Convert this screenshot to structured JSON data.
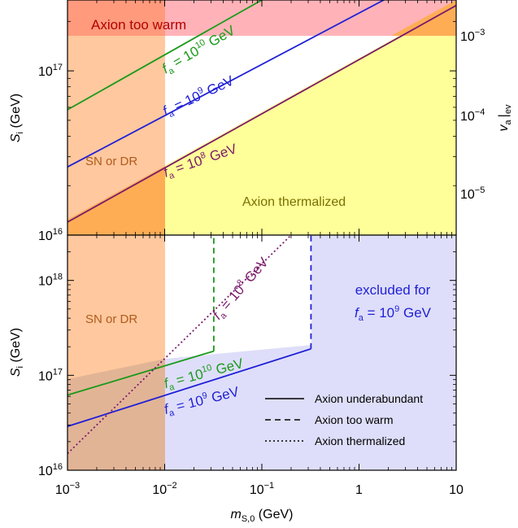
{
  "chart_data": [
    {
      "panel": "top",
      "type": "line",
      "x_scale": "log",
      "y_scale": "log",
      "xlim": [
        0.001,
        10
      ],
      "ylim": [
        10000000000000000,
        270000000000000000
      ],
      "ylabel": "S_i (GeV)",
      "y_ticks": [
        {
          "value": 10000000000000000,
          "mant": "10",
          "exp": "16"
        },
        {
          "value": 100000000000000000,
          "mant": "10",
          "exp": "17"
        }
      ],
      "right_axis": {
        "label": "v_a|ev",
        "ticks": [
          {
            "value": 0.001,
            "mant": "10",
            "exp": "−3"
          },
          {
            "value": 0.0001,
            "mant": "10",
            "exp": "−4"
          },
          {
            "value": 1e-05,
            "mant": "10",
            "exp": "−5"
          }
        ]
      },
      "series": [
        {
          "name": "f_a = 10^10 GeV",
          "color": "#1a9a1a",
          "style": "solid",
          "x": [
            0.001,
            0.1
          ],
          "y": [
            58000000000000000,
            270000000000000000
          ]
        },
        {
          "name": "f_a = 10^9 GeV",
          "color": "#1f1fd6",
          "style": "solid",
          "x": [
            0.001,
            1.8
          ],
          "y": [
            26000000000000000,
            270000000000000000
          ]
        },
        {
          "name": "f_a = 10^8 GeV",
          "color": "#7a1a6a",
          "style": "solid",
          "x": [
            0.001,
            10
          ],
          "y": [
            12000000000000000,
            250000000000000000
          ]
        }
      ],
      "regions": [
        {
          "label": "Axion too warm",
          "color": "#ffb3b8",
          "y_min": 195000000000000000
        },
        {
          "label": "SN or DR",
          "color": "#ffc89e",
          "x_max": 0.01
        },
        {
          "label": "Axion thermalized",
          "color": "#ffff99"
        }
      ],
      "line_labels": [
        {
          "base": "f",
          "sub": "a",
          "mid": " = 10",
          "sup": "10",
          "tail": " GeV",
          "color": "#1a9a1a"
        },
        {
          "base": "f",
          "sub": "a",
          "mid": " = 10",
          "sup": "9",
          "tail": " GeV",
          "color": "#1f1fd6"
        },
        {
          "base": "f",
          "sub": "a",
          "mid": " = 10",
          "sup": "8",
          "tail": " GeV",
          "color": "#7a1a6a"
        }
      ]
    },
    {
      "panel": "bottom",
      "type": "line",
      "x_scale": "log",
      "y_scale": "log",
      "xlim": [
        0.001,
        10
      ],
      "ylim": [
        10000000000000000,
        3000000000000000000
      ],
      "xlabel": "m_S,0 (GeV)",
      "ylabel": "S_i (GeV)",
      "x_ticks": [
        {
          "value": 0.001,
          "mant": "10",
          "exp": "−3"
        },
        {
          "value": 0.01,
          "mant": "10",
          "exp": "−2"
        },
        {
          "value": 0.1,
          "mant": "10",
          "exp": "−1"
        },
        {
          "value": 1,
          "mant": "1",
          "exp": ""
        },
        {
          "value": 10,
          "mant": "10",
          "exp": ""
        }
      ],
      "y_ticks": [
        {
          "value": 10000000000000000,
          "mant": "10",
          "exp": "16"
        },
        {
          "value": 100000000000000000,
          "mant": "10",
          "exp": "17"
        },
        {
          "value": 1000000000000000000,
          "mant": "10",
          "exp": "18"
        }
      ],
      "series": [
        {
          "name": "f_a = 10^10 GeV",
          "color": "#1a9a1a",
          "style": "solid",
          "x": [
            0.001,
            0.032
          ],
          "y": [
            62000000000000000,
            180000000000000000
          ]
        },
        {
          "name": "f_a = 10^10 GeV",
          "color": "#1a9a1a",
          "style": "dashed",
          "x": [
            0.032,
            0.032
          ],
          "y": [
            180000000000000000,
            3000000000000000000
          ]
        },
        {
          "name": "f_a = 10^9 GeV",
          "color": "#1f1fd6",
          "style": "solid",
          "x": [
            0.001,
            0.32
          ],
          "y": [
            29000000000000000,
            190000000000000000
          ]
        },
        {
          "name": "f_a = 10^9 GeV",
          "color": "#1f1fd6",
          "style": "dashed",
          "x": [
            0.32,
            0.32
          ],
          "y": [
            190000000000000000,
            3000000000000000000
          ]
        },
        {
          "name": "f_a = 10^8 GeV",
          "color": "#7a1a6a",
          "style": "dotted",
          "x": [
            0.001,
            0.2
          ],
          "y": [
            15000000000000000,
            3000000000000000000
          ]
        }
      ],
      "regions": [
        {
          "label": "SN or DR",
          "color": "#ffc89e",
          "x_max": 0.01
        },
        {
          "label": "excluded for f_a = 10^9 GeV",
          "color": "#dedefa"
        }
      ],
      "line_labels": [
        {
          "base": "f",
          "sub": "a",
          "mid": " = 10",
          "sup": "10",
          "tail": " GeV",
          "color": "#1a9a1a"
        },
        {
          "base": "f",
          "sub": "a",
          "mid": " = 10",
          "sup": "9",
          "tail": " GeV",
          "color": "#1f1fd6"
        },
        {
          "base": "f",
          "sub": "a",
          "mid": " = 10",
          "sup": "8",
          "tail": " GeV",
          "color": "#7a1a6a"
        }
      ],
      "excluded_label": {
        "line1": "excluded for",
        "base": "f",
        "sub": "a",
        "mid": " = 10",
        "sup": "9",
        "tail": " GeV",
        "color": "#1f1fd6"
      },
      "legend": [
        {
          "label": "Axion underabundant",
          "style": "solid"
        },
        {
          "label": "Axion too warm",
          "style": "dashed"
        },
        {
          "label": "Axion thermalized",
          "style": "dotted"
        }
      ]
    }
  ],
  "labels": {
    "ylabel_base": "S",
    "ylabel_sub": "i",
    "ylabel_tail": " (GeV)",
    "xlabel_base": "m",
    "xlabel_sub": "S,0",
    "xlabel_tail": " (GeV)",
    "right_base": "v",
    "right_sub": "a",
    "right_bar": "|",
    "right_sub2": "ev",
    "too_warm": "Axion too warm",
    "sn_dr": "SN or DR",
    "thermalized": "Axion thermalized"
  }
}
